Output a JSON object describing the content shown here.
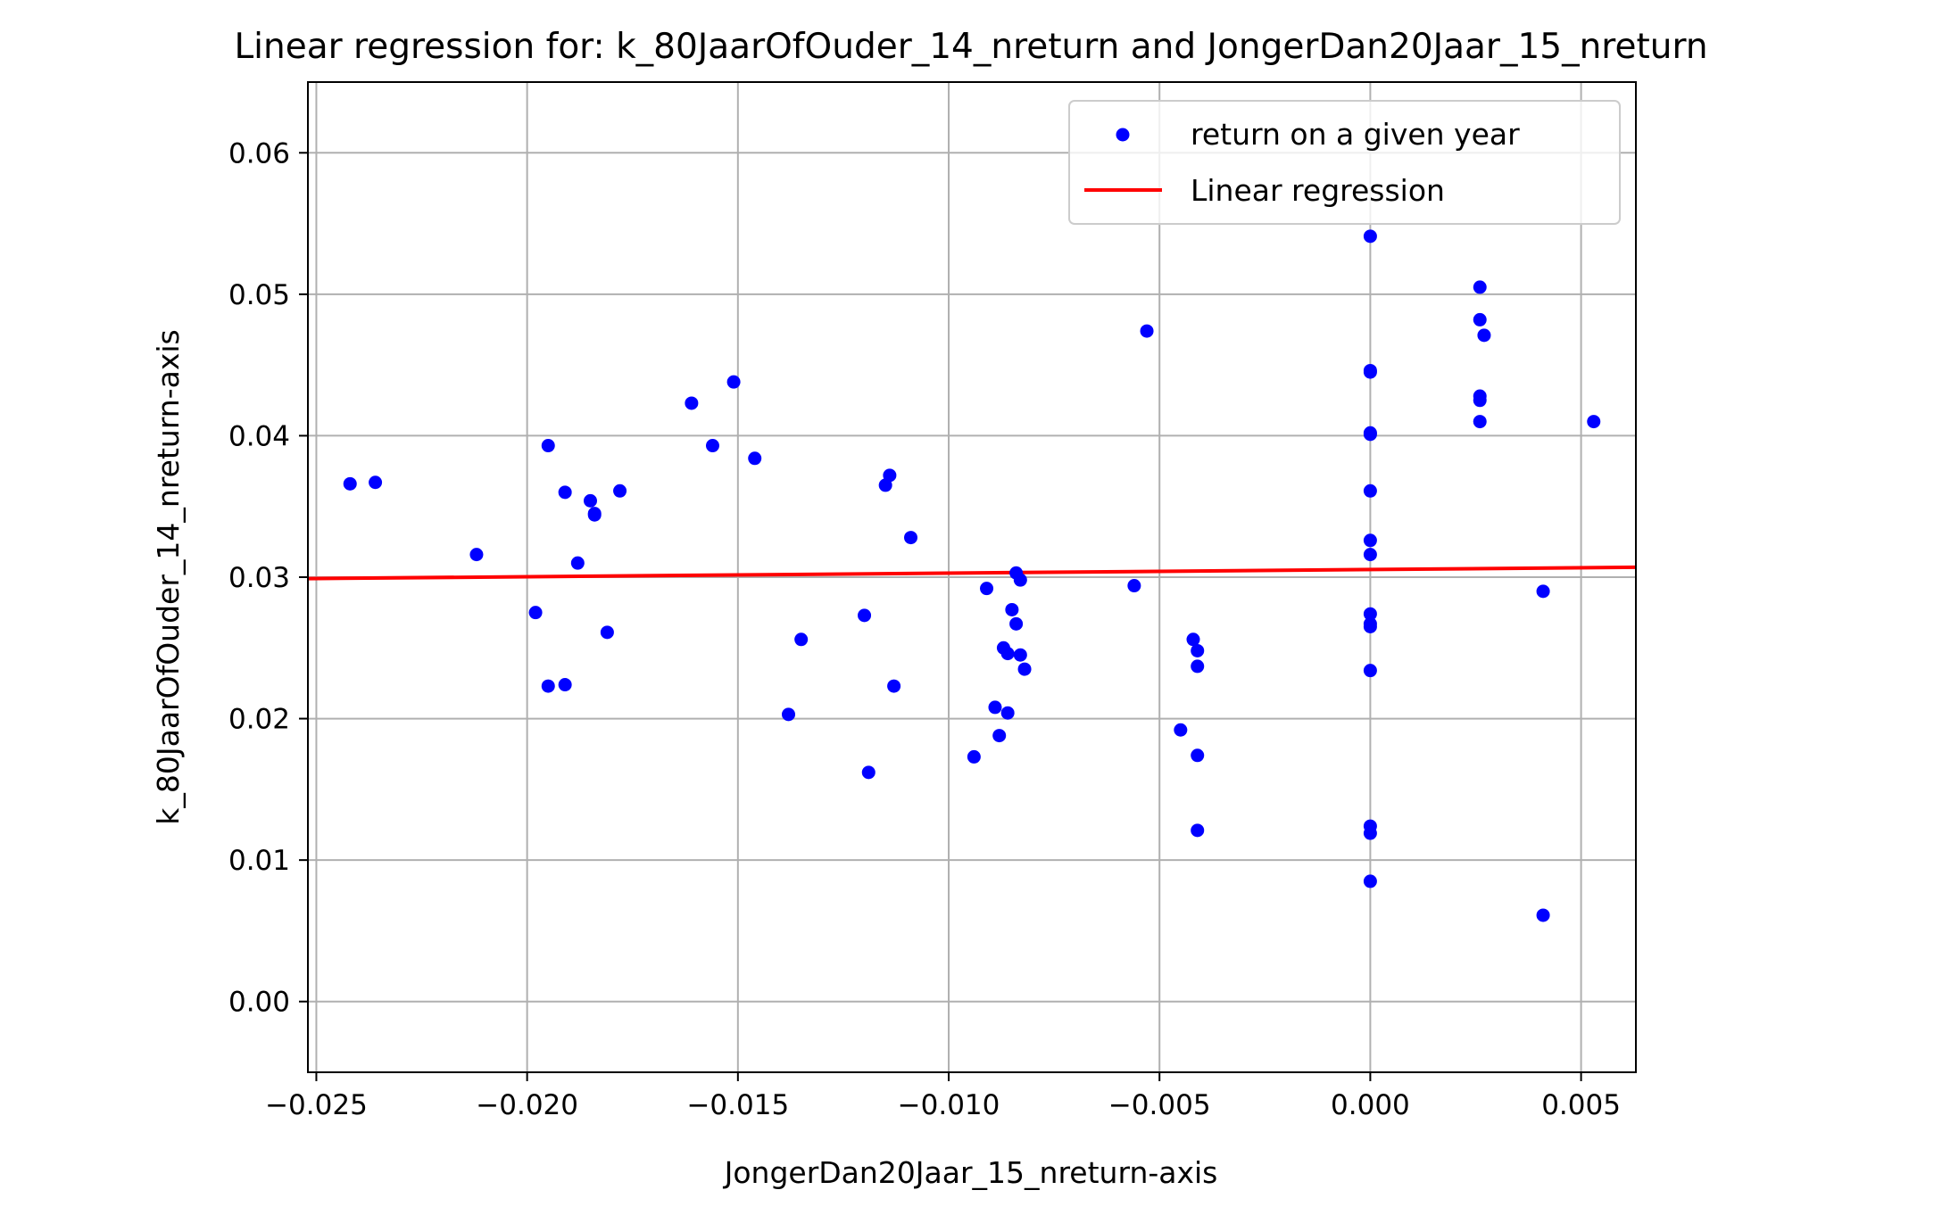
{
  "chart_data": {
    "type": "scatter",
    "title": "Linear regression for: k_80JaarOfOuder_14_nreturn and JongerDan20Jaar_15_nreturn",
    "xlabel": "JongerDan20Jaar_15_nreturn-axis",
    "ylabel": "k_80JaarOfOuder_14_nreturn-axis",
    "xlim": [
      -0.0252,
      0.0063
    ],
    "ylim": [
      -0.005,
      0.065
    ],
    "grid": true,
    "legend_position": "top-right",
    "x_ticks": [
      -0.025,
      -0.02,
      -0.015,
      -0.01,
      -0.005,
      0.0,
      0.005
    ],
    "x_tick_labels": [
      "−0.025",
      "−0.020",
      "−0.015",
      "−0.010",
      "−0.005",
      "0.000",
      "0.005"
    ],
    "y_ticks": [
      0.0,
      0.01,
      0.02,
      0.03,
      0.04,
      0.05,
      0.06
    ],
    "y_tick_labels": [
      "0.00",
      "0.01",
      "0.02",
      "0.03",
      "0.04",
      "0.05",
      "0.06"
    ],
    "series": [
      {
        "name": "return on a given year",
        "kind": "scatter",
        "color": "#0000ff",
        "points": [
          [
            -0.0242,
            0.0366
          ],
          [
            -0.0236,
            0.0367
          ],
          [
            -0.0212,
            0.0316
          ],
          [
            -0.0198,
            0.0275
          ],
          [
            -0.0195,
            0.0393
          ],
          [
            -0.0195,
            0.0223
          ],
          [
            -0.0191,
            0.0224
          ],
          [
            -0.0191,
            0.036
          ],
          [
            -0.0188,
            0.031
          ],
          [
            -0.0185,
            0.0354
          ],
          [
            -0.0184,
            0.0345
          ],
          [
            -0.0184,
            0.0344
          ],
          [
            -0.0181,
            0.0261
          ],
          [
            -0.0178,
            0.0361
          ],
          [
            -0.0161,
            0.0423
          ],
          [
            -0.0156,
            0.0393
          ],
          [
            -0.0151,
            0.0438
          ],
          [
            -0.0146,
            0.0384
          ],
          [
            -0.0138,
            0.0203
          ],
          [
            -0.0135,
            0.0256
          ],
          [
            -0.012,
            0.0273
          ],
          [
            -0.0119,
            0.0162
          ],
          [
            -0.0115,
            0.0365
          ],
          [
            -0.0114,
            0.0372
          ],
          [
            -0.0113,
            0.0223
          ],
          [
            -0.0109,
            0.0328
          ],
          [
            -0.0094,
            0.0173
          ],
          [
            -0.0091,
            0.0292
          ],
          [
            -0.0089,
            0.0208
          ],
          [
            -0.0088,
            0.0188
          ],
          [
            -0.0087,
            0.025
          ],
          [
            -0.0086,
            0.0204
          ],
          [
            -0.0086,
            0.0246
          ],
          [
            -0.0085,
            0.0277
          ],
          [
            -0.0084,
            0.0303
          ],
          [
            -0.0084,
            0.0267
          ],
          [
            -0.0083,
            0.0298
          ],
          [
            -0.0083,
            0.0245
          ],
          [
            -0.0082,
            0.0235
          ],
          [
            -0.0056,
            0.0294
          ],
          [
            -0.0053,
            0.0474
          ],
          [
            -0.0045,
            0.0192
          ],
          [
            -0.0042,
            0.0256
          ],
          [
            -0.0041,
            0.0248
          ],
          [
            -0.0041,
            0.0237
          ],
          [
            -0.0041,
            0.0174
          ],
          [
            -0.0041,
            0.0121
          ],
          [
            0.0,
            0.0541
          ],
          [
            0.0,
            0.0446
          ],
          [
            0.0,
            0.0445
          ],
          [
            0.0,
            0.0402
          ],
          [
            0.0,
            0.0401
          ],
          [
            0.0,
            0.0361
          ],
          [
            0.0,
            0.0326
          ],
          [
            0.0,
            0.0316
          ],
          [
            0.0,
            0.0274
          ],
          [
            0.0,
            0.0267
          ],
          [
            0.0,
            0.0265
          ],
          [
            0.0,
            0.0234
          ],
          [
            0.0,
            0.0124
          ],
          [
            0.0,
            0.0119
          ],
          [
            0.0,
            0.0085
          ],
          [
            0.0026,
            0.0505
          ],
          [
            0.0026,
            0.0482
          ],
          [
            0.0027,
            0.0471
          ],
          [
            0.0026,
            0.0428
          ],
          [
            0.0026,
            0.0425
          ],
          [
            0.0026,
            0.041
          ],
          [
            0.0041,
            0.029
          ],
          [
            0.0041,
            0.0061
          ],
          [
            0.0053,
            0.041
          ]
        ]
      },
      {
        "name": "Linear regression",
        "kind": "line",
        "color": "#ff0000",
        "points": [
          [
            -0.0252,
            0.0299
          ],
          [
            0.0063,
            0.0307
          ]
        ]
      }
    ]
  }
}
